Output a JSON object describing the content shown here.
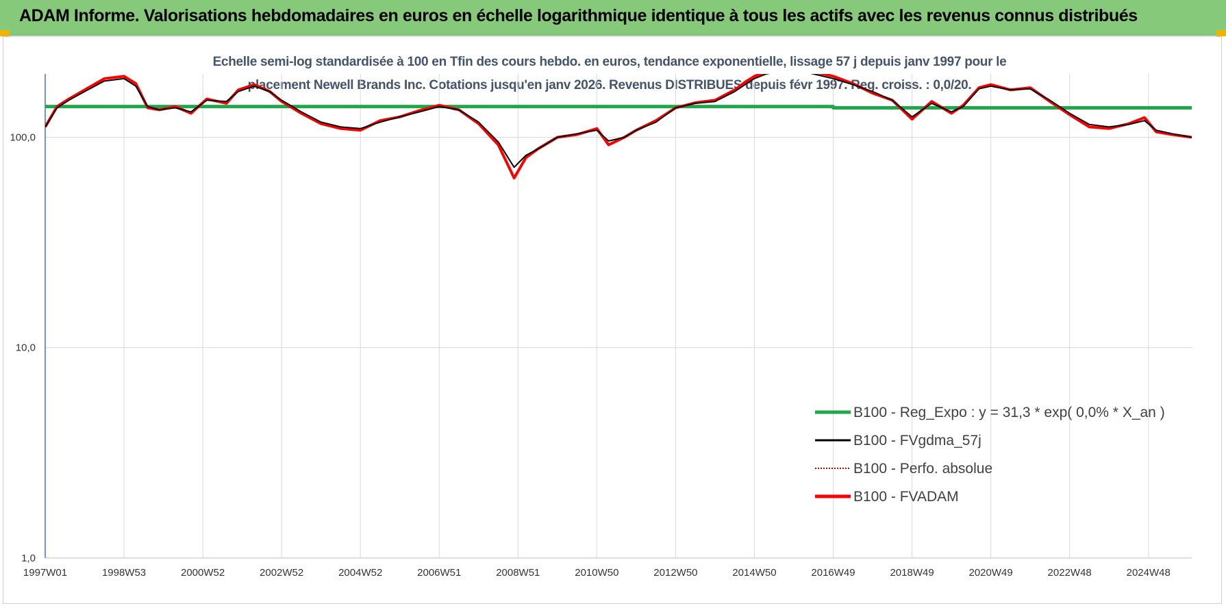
{
  "header": {
    "title": "ADAM Informe. Valorisations hebdomadaires en euros en échelle logarithmique identique à tous les actifs avec les revenus connus distribués"
  },
  "colors": {
    "banner": "#86c97a",
    "regression": "#1fa84a",
    "smoothed": "#000000",
    "perfo": "#c00000",
    "fvadam": "#ff0000",
    "grid": "#d9d9d9",
    "accent": "#f0b400"
  },
  "chart_data": {
    "type": "line",
    "title_lines": [
      "Echelle semi-log standardisée à 100 en Tfin des cours hebdo. en euros, tendance exponentielle, lissage 57 j depuis janv 1997 pour le",
      "placement Newell Brands Inc. Cotations jusqu'en janv 2026. Revenus DISTRIBUES depuis févr 1997. Reg. croiss. : 0,0/20."
    ],
    "y_scale": "log",
    "ylim": [
      1,
      200
    ],
    "y_ticks": [
      {
        "value": 1,
        "label": "1,0"
      },
      {
        "value": 10,
        "label": "10,0"
      },
      {
        "value": 100,
        "label": "100,0"
      }
    ],
    "xlim": [
      1997.0,
      2026.1
    ],
    "x_ticks": [
      {
        "value": 1997.0,
        "label": "1997W01"
      },
      {
        "value": 1999.0,
        "label": "1998W53"
      },
      {
        "value": 2001.0,
        "label": "2000W52"
      },
      {
        "value": 2003.0,
        "label": "2002W52"
      },
      {
        "value": 2005.0,
        "label": "2004W52"
      },
      {
        "value": 2007.0,
        "label": "2006W51"
      },
      {
        "value": 2009.0,
        "label": "2008W51"
      },
      {
        "value": 2011.0,
        "label": "2010W50"
      },
      {
        "value": 2013.0,
        "label": "2012W50"
      },
      {
        "value": 2015.0,
        "label": "2014W50"
      },
      {
        "value": 2017.0,
        "label": "2016W49"
      },
      {
        "value": 2019.0,
        "label": "2018W49"
      },
      {
        "value": 2021.0,
        "label": "2020W49"
      },
      {
        "value": 2023.0,
        "label": "2022W48"
      },
      {
        "value": 2025.0,
        "label": "2024W48"
      }
    ],
    "grid": "vertical and horizontal",
    "legend_position": "bottom-right",
    "series": [
      {
        "name": "B100 - Reg_Expo : y = 31,3 * exp( 0,0% *  X_an )",
        "style": "thick-green",
        "x": [
          1997.0,
          2017.0,
          2017.0,
          2026.1
        ],
        "y": [
          140,
          140,
          138,
          138
        ]
      },
      {
        "name": "B100 - FVgdma_57j",
        "style": "thin-black",
        "x": [
          1997.0,
          1997.3,
          1997.6,
          1998.0,
          1998.5,
          1999.0,
          1999.3,
          1999.6,
          1999.9,
          2000.3,
          2000.7,
          2001.1,
          2001.6,
          2001.9,
          2002.3,
          2002.7,
          2003.0,
          2003.5,
          2004.0,
          2004.5,
          2005.0,
          2005.5,
          2006.0,
          2006.5,
          2007.0,
          2007.5,
          2008.0,
          2008.5,
          2008.9,
          2009.2,
          2009.5,
          2010.0,
          2010.5,
          2011.0,
          2011.3,
          2011.7,
          2012.0,
          2012.5,
          2013.0,
          2013.5,
          2014.0,
          2014.5,
          2014.8,
          2015.0,
          2015.3,
          2015.6,
          2016.0,
          2016.5,
          2017.0,
          2017.5,
          2018.0,
          2018.5,
          2019.0,
          2019.5,
          2020.0,
          2020.3,
          2020.7,
          2021.0,
          2021.5,
          2022.0,
          2022.5,
          2023.0,
          2023.5,
          2024.0,
          2024.5,
          2024.9,
          2025.2,
          2025.6,
          2026.1
        ],
        "y": [
          112,
          138,
          150,
          165,
          185,
          190,
          175,
          140,
          135,
          138,
          132,
          150,
          148,
          165,
          175,
          165,
          150,
          132,
          118,
          112,
          110,
          118,
          125,
          132,
          140,
          135,
          118,
          95,
          72,
          82,
          88,
          100,
          104,
          108,
          96,
          100,
          108,
          118,
          138,
          145,
          148,
          165,
          180,
          190,
          200,
          205,
          210,
          200,
          190,
          178,
          165,
          150,
          125,
          145,
          132,
          140,
          170,
          175,
          168,
          170,
          150,
          130,
          115,
          112,
          115,
          120,
          108,
          104,
          100
        ]
      },
      {
        "name": "B100 - Perfo. absolue",
        "style": "dotted-darkred",
        "x": [],
        "y": []
      },
      {
        "name": "B100 - FVADAM",
        "style": "thick-red",
        "x": [
          1997.0,
          1997.3,
          1997.6,
          1998.0,
          1998.5,
          1999.0,
          1999.3,
          1999.6,
          1999.9,
          2000.3,
          2000.7,
          2001.1,
          2001.6,
          2001.9,
          2002.3,
          2002.7,
          2003.0,
          2003.5,
          2004.0,
          2004.5,
          2005.0,
          2005.5,
          2006.0,
          2006.5,
          2007.0,
          2007.5,
          2008.0,
          2008.5,
          2008.9,
          2009.2,
          2009.5,
          2010.0,
          2010.5,
          2011.0,
          2011.3,
          2011.7,
          2012.0,
          2012.5,
          2013.0,
          2013.5,
          2014.0,
          2014.5,
          2014.8,
          2015.0,
          2015.3,
          2015.6,
          2016.0,
          2016.5,
          2017.0,
          2017.5,
          2018.0,
          2018.5,
          2019.0,
          2019.5,
          2020.0,
          2020.3,
          2020.7,
          2021.0,
          2021.5,
          2022.0,
          2022.5,
          2023.0,
          2023.5,
          2024.0,
          2024.5,
          2024.9,
          2025.2,
          2025.6,
          2026.1
        ],
        "y": [
          112,
          140,
          152,
          168,
          190,
          195,
          180,
          138,
          135,
          140,
          130,
          152,
          145,
          168,
          178,
          165,
          148,
          130,
          116,
          110,
          108,
          120,
          125,
          134,
          142,
          135,
          116,
          92,
          64,
          80,
          88,
          100,
          103,
          110,
          92,
          100,
          108,
          120,
          138,
          146,
          150,
          168,
          185,
          195,
          205,
          210,
          215,
          205,
          195,
          180,
          162,
          150,
          122,
          148,
          130,
          142,
          172,
          178,
          168,
          172,
          148,
          128,
          112,
          110,
          116,
          124,
          106,
          103,
          100
        ]
      }
    ]
  }
}
